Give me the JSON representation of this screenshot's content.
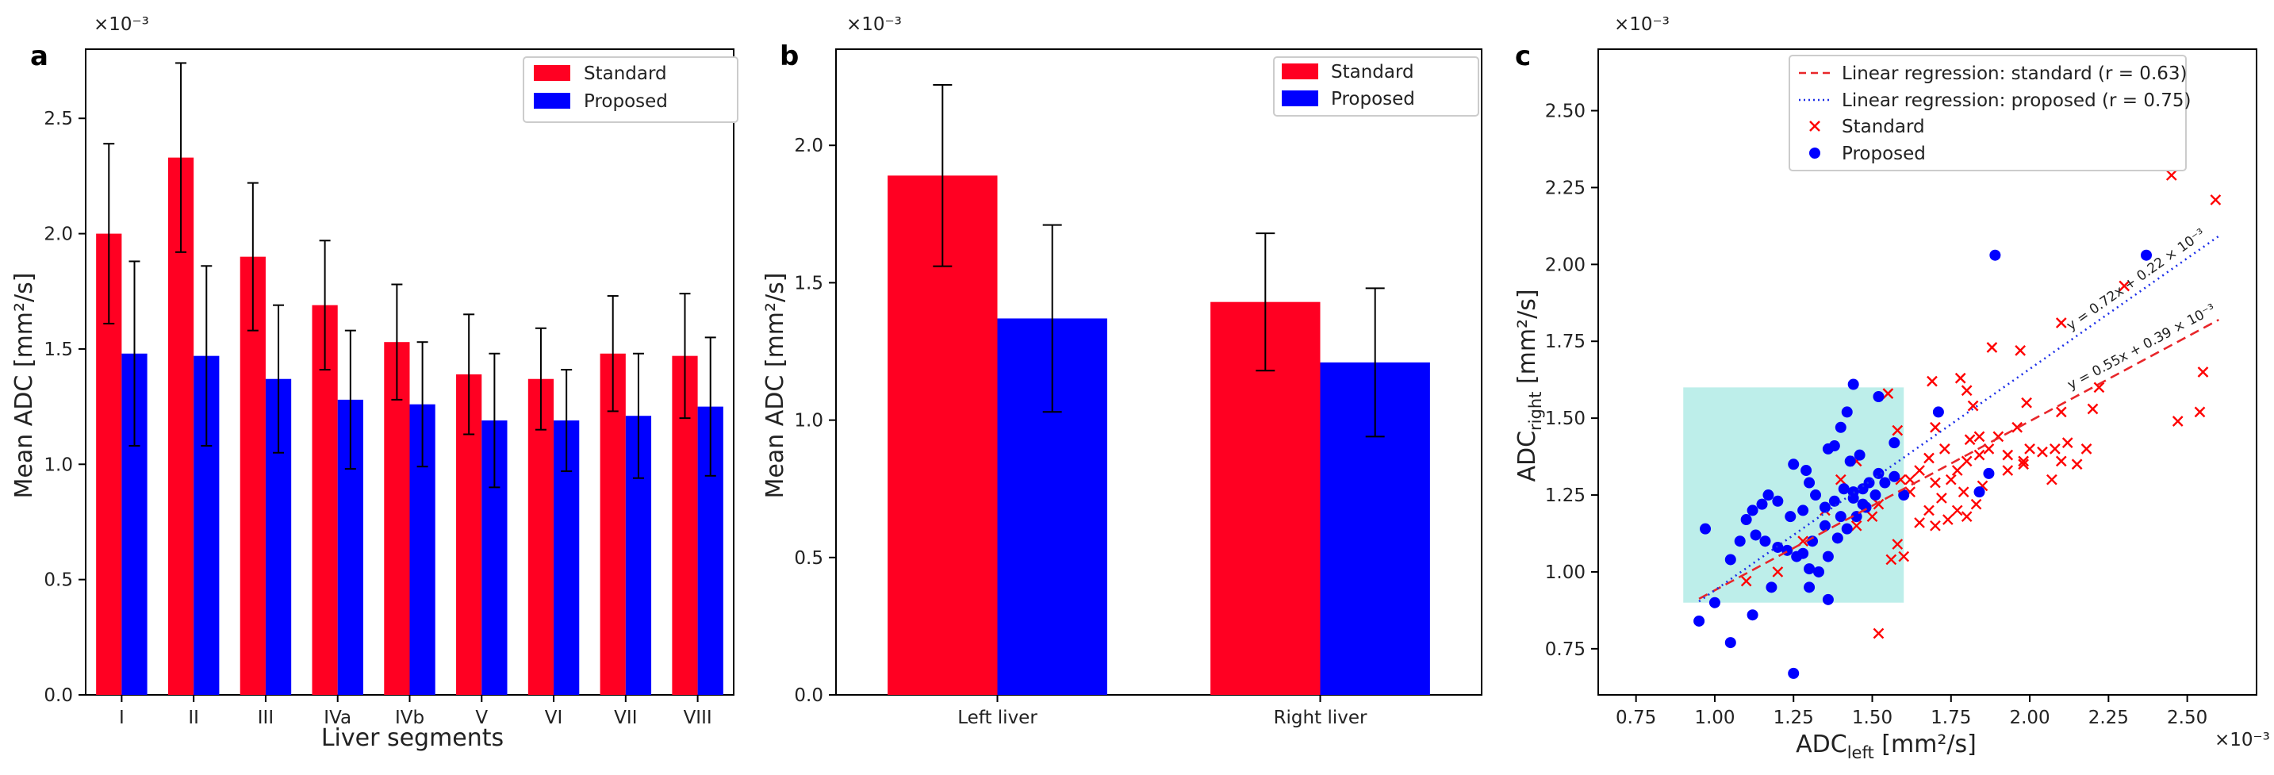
{
  "chart_data": [
    {
      "panel": "a",
      "type": "bar",
      "title": "",
      "xlabel": "Liver segments",
      "ylabel": "Mean ADC [mm²/s]",
      "y_exponent": "×10⁻³",
      "ylim": [
        0,
        2.8
      ],
      "yticks": [
        "0.0",
        "0.5",
        "1.0",
        "1.5",
        "2.0",
        "2.5"
      ],
      "yticks_values": [
        0,
        0.5,
        1.0,
        1.5,
        2.0,
        2.5
      ],
      "categories": [
        "I",
        "II",
        "III",
        "IVa",
        "IVb",
        "V",
        "VI",
        "VII",
        "VIII"
      ],
      "series": [
        {
          "name": "Standard",
          "color": "#ff0022",
          "values": [
            2.0,
            2.33,
            1.9,
            1.69,
            1.53,
            1.39,
            1.37,
            1.48,
            1.47
          ],
          "errors": [
            0.39,
            0.41,
            0.32,
            0.28,
            0.25,
            0.26,
            0.22,
            0.25,
            0.27
          ]
        },
        {
          "name": "Proposed",
          "color": "#0000ff",
          "values": [
            1.48,
            1.47,
            1.37,
            1.28,
            1.26,
            1.19,
            1.19,
            1.21,
            1.25
          ],
          "errors": [
            0.4,
            0.39,
            0.32,
            0.3,
            0.27,
            0.29,
            0.22,
            0.27,
            0.3
          ]
        }
      ],
      "legend": "top-right"
    },
    {
      "panel": "b",
      "type": "bar",
      "title": "",
      "xlabel": "",
      "ylabel": "Mean ADC [mm²/s]",
      "y_exponent": "×10⁻³",
      "ylim": [
        0,
        2.35
      ],
      "yticks": [
        "0.0",
        "0.5",
        "1.0",
        "1.5",
        "2.0"
      ],
      "yticks_values": [
        0,
        0.5,
        1.0,
        1.5,
        2.0
      ],
      "categories": [
        "Left liver",
        "Right liver"
      ],
      "series": [
        {
          "name": "Standard",
          "color": "#ff0022",
          "values": [
            1.89,
            1.43
          ],
          "errors": [
            0.33,
            0.25
          ]
        },
        {
          "name": "Proposed",
          "color": "#0000ff",
          "values": [
            1.37,
            1.21
          ],
          "errors": [
            0.34,
            0.27
          ]
        }
      ],
      "legend": "top-right"
    },
    {
      "panel": "c",
      "type": "scatter",
      "title": "",
      "xlabel_main": "ADC",
      "xlabel_sub": "left",
      "xlabel_unit": " [mm²/s]",
      "ylabel_main": "ADC",
      "ylabel_sub": "right",
      "ylabel_unit": " [mm²/s]",
      "x_exponent": "×10⁻³",
      "y_exponent": "×10⁻³",
      "xlim": [
        0.63,
        2.72
      ],
      "ylim": [
        0.6,
        2.7
      ],
      "xticks": [
        "0.75",
        "1.00",
        "1.25",
        "1.50",
        "1.75",
        "2.00",
        "2.25",
        "2.50"
      ],
      "xticks_values": [
        0.75,
        1.0,
        1.25,
        1.5,
        1.75,
        2.0,
        2.25,
        2.5
      ],
      "yticks": [
        "0.75",
        "1.00",
        "1.25",
        "1.50",
        "1.75",
        "2.00",
        "2.25",
        "2.50"
      ],
      "yticks_values": [
        0.75,
        1.0,
        1.25,
        1.5,
        1.75,
        2.0,
        2.25,
        2.5
      ],
      "highlight_region": {
        "x": [
          0.9,
          1.6
        ],
        "y": [
          0.9,
          1.6
        ],
        "color": "#bdeeea"
      },
      "regression": [
        {
          "name": "Linear regression: standard (r = 0.63)",
          "color": "#e8262a",
          "style": "dashed",
          "slope": 0.55,
          "intercept": 0.39,
          "x_range": [
            0.95,
            2.6
          ],
          "equation": "y = 0.55x + 0.39 × 10⁻³"
        },
        {
          "name": "Linear regression: proposed (r = 0.75)",
          "color": "#1b2ee8",
          "style": "dotted",
          "slope": 0.72,
          "intercept": 0.22,
          "x_range": [
            0.95,
            2.6
          ],
          "equation": "y = 0.72x + 0.22 × 10⁻³"
        }
      ],
      "series": [
        {
          "name": "Standard",
          "marker": "x",
          "color": "#ff0000",
          "points": [
            [
              2.45,
              2.29
            ],
            [
              2.59,
              2.21
            ],
            [
              2.3,
              1.93
            ],
            [
              1.97,
              1.72
            ],
            [
              2.1,
              1.81
            ],
            [
              1.88,
              1.73
            ],
            [
              1.8,
              1.59
            ],
            [
              1.82,
              1.54
            ],
            [
              1.69,
              1.62
            ],
            [
              1.78,
              1.63
            ],
            [
              1.58,
              1.46
            ],
            [
              1.55,
              1.58
            ],
            [
              1.7,
              1.47
            ],
            [
              1.81,
              1.43
            ],
            [
              1.84,
              1.44
            ],
            [
              1.9,
              1.44
            ],
            [
              1.96,
              1.47
            ],
            [
              1.99,
              1.55
            ],
            [
              2.1,
              1.52
            ],
            [
              2.2,
              1.53
            ],
            [
              2.22,
              1.6
            ],
            [
              2.55,
              1.65
            ],
            [
              2.47,
              1.49
            ],
            [
              2.54,
              1.52
            ],
            [
              2.15,
              1.35
            ],
            [
              2.08,
              1.4
            ],
            [
              2.04,
              1.39
            ],
            [
              2.1,
              1.36
            ],
            [
              2.0,
              1.4
            ],
            [
              1.98,
              1.36
            ],
            [
              1.93,
              1.38
            ],
            [
              1.87,
              1.4
            ],
            [
              1.84,
              1.38
            ],
            [
              1.8,
              1.36
            ],
            [
              1.77,
              1.33
            ],
            [
              1.75,
              1.3
            ],
            [
              1.73,
              1.4
            ],
            [
              1.68,
              1.37
            ],
            [
              1.65,
              1.33
            ],
            [
              1.62,
              1.26
            ],
            [
              1.59,
              1.3
            ],
            [
              1.7,
              1.29
            ],
            [
              1.72,
              1.24
            ],
            [
              1.68,
              1.2
            ],
            [
              1.65,
              1.16
            ],
            [
              1.7,
              1.15
            ],
            [
              1.74,
              1.17
            ],
            [
              1.77,
              1.2
            ],
            [
              1.8,
              1.18
            ],
            [
              1.83,
              1.22
            ],
            [
              1.79,
              1.26
            ],
            [
              1.85,
              1.28
            ],
            [
              1.93,
              1.33
            ],
            [
              1.98,
              1.35
            ],
            [
              2.07,
              1.3
            ],
            [
              2.12,
              1.42
            ],
            [
              2.18,
              1.4
            ],
            [
              1.56,
              1.04
            ],
            [
              1.58,
              1.09
            ],
            [
              1.6,
              1.05
            ],
            [
              1.52,
              1.22
            ],
            [
              1.45,
              1.36
            ],
            [
              1.4,
              1.3
            ],
            [
              1.35,
              1.2
            ],
            [
              1.28,
              1.1
            ],
            [
              1.2,
              1.0
            ],
            [
              1.1,
              0.97
            ],
            [
              1.52,
              0.8
            ],
            [
              1.5,
              1.18
            ],
            [
              1.45,
              1.15
            ],
            [
              1.62,
              1.3
            ]
          ]
        },
        {
          "name": "Proposed",
          "marker": "o",
          "color": "#0000ff",
          "points": [
            [
              1.89,
              2.03
            ],
            [
              2.37,
              2.03
            ],
            [
              1.44,
              1.61
            ],
            [
              1.4,
              1.47
            ],
            [
              1.42,
              1.52
            ],
            [
              1.38,
              1.41
            ],
            [
              1.43,
              1.36
            ],
            [
              1.52,
              1.32
            ],
            [
              1.49,
              1.29
            ],
            [
              1.47,
              1.27
            ],
            [
              1.44,
              1.24
            ],
            [
              1.41,
              1.27
            ],
            [
              1.38,
              1.23
            ],
            [
              1.35,
              1.21
            ],
            [
              1.32,
              1.25
            ],
            [
              1.3,
              1.29
            ],
            [
              1.29,
              1.33
            ],
            [
              1.25,
              1.35
            ],
            [
              1.28,
              1.2
            ],
            [
              1.24,
              1.18
            ],
            [
              1.2,
              1.23
            ],
            [
              1.17,
              1.25
            ],
            [
              1.15,
              1.22
            ],
            [
              1.12,
              1.2
            ],
            [
              1.1,
              1.17
            ],
            [
              1.13,
              1.12
            ],
            [
              1.16,
              1.1
            ],
            [
              1.2,
              1.08
            ],
            [
              1.23,
              1.07
            ],
            [
              1.26,
              1.05
            ],
            [
              1.3,
              1.01
            ],
            [
              1.33,
              1.0
            ],
            [
              1.36,
              1.05
            ],
            [
              1.39,
              1.11
            ],
            [
              1.42,
              1.14
            ],
            [
              1.45,
              1.18
            ],
            [
              1.48,
              1.21
            ],
            [
              1.51,
              1.25
            ],
            [
              1.54,
              1.29
            ],
            [
              1.57,
              1.31
            ],
            [
              1.6,
              1.25
            ],
            [
              1.57,
              1.42
            ],
            [
              1.52,
              1.57
            ],
            [
              1.36,
              1.4
            ],
            [
              1.47,
              1.22
            ],
            [
              1.44,
              1.26
            ],
            [
              1.4,
              1.18
            ],
            [
              1.35,
              1.15
            ],
            [
              1.31,
              1.1
            ],
            [
              1.28,
              1.06
            ],
            [
              1.05,
              1.04
            ],
            [
              1.08,
              1.1
            ],
            [
              1.0,
              0.9
            ],
            [
              1.12,
              0.86
            ],
            [
              1.05,
              0.77
            ],
            [
              0.95,
              0.84
            ],
            [
              0.97,
              1.14
            ],
            [
              1.25,
              0.67
            ],
            [
              1.36,
              0.91
            ],
            [
              1.3,
              0.95
            ],
            [
              1.18,
              0.95
            ],
            [
              1.71,
              1.52
            ],
            [
              1.84,
              1.26
            ],
            [
              1.87,
              1.32
            ],
            [
              1.46,
              1.38
            ]
          ]
        }
      ],
      "legend": "top-right"
    }
  ]
}
